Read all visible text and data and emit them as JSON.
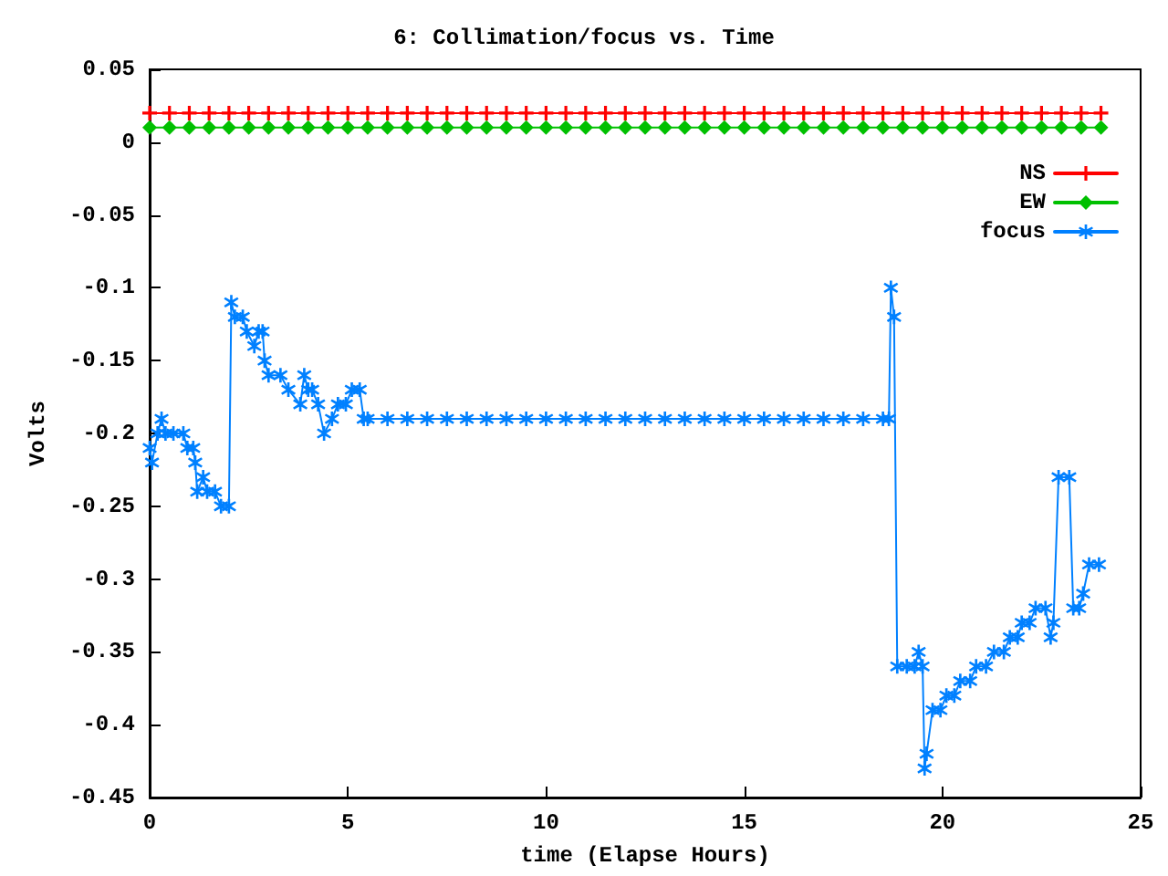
{
  "chart_data": {
    "type": "line",
    "title": "6: Collimation/focus vs. Time",
    "xlabel": "time (Elapse Hours)",
    "ylabel": "Volts",
    "xlim": [
      0,
      25
    ],
    "xticks": [
      0,
      5,
      10,
      15,
      20,
      25
    ],
    "ylim": [
      -0.45,
      0.05
    ],
    "yticks": [
      -0.45,
      -0.4,
      -0.35,
      -0.3,
      -0.25,
      -0.2,
      -0.15,
      -0.1,
      -0.05,
      0,
      0.05
    ],
    "grid": false,
    "legend": "top right",
    "x": [
      0,
      0.5,
      1,
      1.5,
      2,
      2.5,
      3,
      3.5,
      4,
      4.5,
      5,
      5.5,
      6,
      6.5,
      7,
      7.5,
      8,
      8.5,
      9,
      9.5,
      10,
      10.5,
      11,
      11.5,
      12,
      12.5,
      13,
      13.5,
      14,
      14.5,
      15,
      15.5,
      16,
      16.5,
      17,
      17.5,
      18,
      18.5,
      19,
      19.5,
      20,
      20.5,
      21,
      21.5,
      22,
      22.5,
      23,
      23.5,
      24
    ],
    "series": [
      {
        "name": "NS",
        "color": "#ff0000",
        "marker": "cross",
        "values": [
          0.02,
          0.02,
          0.02,
          0.02,
          0.02,
          0.02,
          0.02,
          0.02,
          0.02,
          0.02,
          0.02,
          0.02,
          0.02,
          0.02,
          0.02,
          0.02,
          0.02,
          0.02,
          0.02,
          0.02,
          0.02,
          0.02,
          0.02,
          0.02,
          0.02,
          0.02,
          0.02,
          0.02,
          0.02,
          0.02,
          0.02,
          0.02,
          0.02,
          0.02,
          0.02,
          0.02,
          0.02,
          0.02,
          0.02,
          0.02,
          0.02,
          0.02,
          0.02,
          0.02,
          0.02,
          0.02,
          0.02,
          0.02,
          0.02
        ]
      },
      {
        "name": "EW",
        "color": "#00c000",
        "marker": "diamond",
        "values": [
          0.01,
          0.01,
          0.01,
          0.01,
          0.01,
          0.01,
          0.01,
          0.01,
          0.01,
          0.01,
          0.01,
          0.01,
          0.01,
          0.01,
          0.01,
          0.01,
          0.01,
          0.01,
          0.01,
          0.01,
          0.01,
          0.01,
          0.01,
          0.01,
          0.01,
          0.01,
          0.01,
          0.01,
          0.01,
          0.01,
          0.01,
          0.01,
          0.01,
          0.01,
          0.01,
          0.01,
          0.01,
          0.01,
          0.01,
          0.01,
          0.01,
          0.01,
          0.01,
          0.01,
          0.01,
          0.01,
          0.01,
          0.01,
          0.01
        ]
      },
      {
        "name": "focus",
        "color": "#0080ff",
        "marker": "star",
        "x": [
          0,
          0.06,
          0.2,
          0.3,
          0.4,
          0.6,
          0.85,
          0.95,
          1.1,
          1.15,
          1.2,
          1.35,
          1.45,
          1.65,
          1.8,
          2.0,
          2.06,
          2.15,
          2.35,
          2.45,
          2.64,
          2.75,
          2.85,
          2.9,
          3.0,
          3.3,
          3.5,
          3.8,
          3.9,
          4.0,
          4.1,
          4.25,
          4.4,
          4.6,
          4.75,
          4.95,
          5.1,
          5.3,
          5.4,
          5.5,
          6,
          6.5,
          7,
          7.5,
          8,
          8.5,
          9,
          9.5,
          10,
          10.5,
          11,
          11.5,
          12,
          12.5,
          13,
          13.5,
          14,
          14.5,
          15,
          15.5,
          16,
          16.5,
          17,
          17.5,
          18,
          18.5,
          18.65,
          18.7,
          18.78,
          18.86,
          19.1,
          19.3,
          19.4,
          19.5,
          19.55,
          19.6,
          19.75,
          19.95,
          20.1,
          20.3,
          20.45,
          20.7,
          20.85,
          21.1,
          21.3,
          21.55,
          21.7,
          21.9,
          22.0,
          22.2,
          22.35,
          22.6,
          22.73,
          22.8,
          22.93,
          23.2,
          23.3,
          23.45,
          23.55,
          23.7,
          23.95
        ],
        "values": [
          -0.21,
          -0.22,
          -0.2,
          -0.19,
          -0.2,
          -0.2,
          -0.2,
          -0.21,
          -0.21,
          -0.22,
          -0.24,
          -0.23,
          -0.24,
          -0.24,
          -0.25,
          -0.25,
          -0.11,
          -0.12,
          -0.12,
          -0.13,
          -0.14,
          -0.13,
          -0.13,
          -0.15,
          -0.16,
          -0.16,
          -0.17,
          -0.18,
          -0.16,
          -0.17,
          -0.17,
          -0.18,
          -0.2,
          -0.19,
          -0.18,
          -0.18,
          -0.17,
          -0.17,
          -0.19,
          -0.19,
          -0.19,
          -0.19,
          -0.19,
          -0.19,
          -0.19,
          -0.19,
          -0.19,
          -0.19,
          -0.19,
          -0.19,
          -0.19,
          -0.19,
          -0.19,
          -0.19,
          -0.19,
          -0.19,
          -0.19,
          -0.19,
          -0.19,
          -0.19,
          -0.19,
          -0.19,
          -0.19,
          -0.19,
          -0.19,
          -0.19,
          -0.19,
          -0.1,
          -0.12,
          -0.36,
          -0.36,
          -0.36,
          -0.35,
          -0.36,
          -0.43,
          -0.42,
          -0.39,
          -0.39,
          -0.38,
          -0.38,
          -0.37,
          -0.37,
          -0.36,
          -0.36,
          -0.35,
          -0.35,
          -0.34,
          -0.34,
          -0.33,
          -0.33,
          -0.32,
          -0.32,
          -0.34,
          -0.33,
          -0.23,
          -0.23,
          -0.32,
          -0.32,
          -0.31,
          -0.29,
          -0.29
        ]
      }
    ]
  }
}
